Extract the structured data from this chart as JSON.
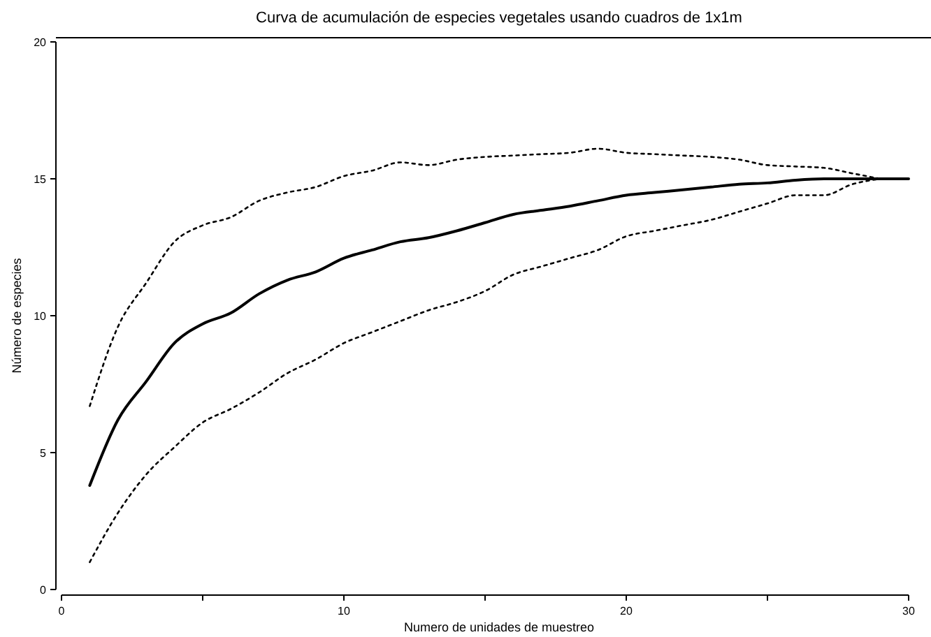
{
  "chart_data": {
    "type": "line",
    "title": "Curva de acumulación de especies vegetales usando cuadros de 1x1m",
    "xlabel": "Numero de unidades de muestreo",
    "ylabel": "Número de especies",
    "xlim": [
      0,
      30
    ],
    "xticks": [
      0,
      {
        "value": 5,
        "label": null
      },
      10,
      {
        "value": 15,
        "label": null
      },
      20,
      {
        "value": 25,
        "label": null
      },
      30
    ],
    "ylim": [
      0,
      20
    ],
    "yticks": [
      0,
      5,
      10,
      15,
      20
    ],
    "grid": false,
    "marker": "none",
    "series": [
      {
        "color": "#000000",
        "line_style": "solid",
        "x": [
          1,
          2,
          3,
          4,
          5,
          6,
          7,
          8,
          9,
          10,
          11,
          12,
          13,
          14,
          15,
          16,
          17,
          18,
          19,
          20,
          21,
          22,
          23,
          24,
          25,
          26,
          27,
          28,
          29,
          30
        ],
        "values": [
          3.8,
          6.2,
          7.6,
          9.0,
          9.7,
          10.1,
          10.8,
          11.3,
          11.6,
          12.1,
          12.4,
          12.7,
          12.85,
          13.1,
          13.4,
          13.7,
          13.85,
          14.0,
          14.2,
          14.4,
          14.5,
          14.6,
          14.7,
          14.8,
          14.85,
          14.95,
          15,
          15,
          15,
          15
        ]
      },
      {
        "color": "#000000",
        "line_style": "dotted",
        "x": [
          1,
          2,
          3,
          4,
          5,
          6,
          7,
          8,
          9,
          10,
          11,
          12,
          13,
          14,
          15,
          16,
          17,
          18,
          19,
          20,
          21,
          22,
          23,
          24,
          25,
          26,
          27,
          28,
          29
        ],
        "values": [
          6.7,
          9.6,
          11.2,
          12.7,
          13.3,
          13.6,
          14.2,
          14.5,
          14.7,
          15.1,
          15.3,
          15.6,
          15.5,
          15.7,
          15.8,
          15.85,
          15.9,
          15.95,
          16.1,
          15.95,
          15.9,
          15.85,
          15.8,
          15.7,
          15.5,
          15.45,
          15.4,
          15.2,
          15.0
        ]
      },
      {
        "color": "#000000",
        "line_style": "dotted",
        "x": [
          1,
          2,
          3,
          4,
          5,
          6,
          7,
          8,
          9,
          10,
          11,
          12,
          13,
          14,
          15,
          16,
          17,
          18,
          19,
          20,
          21,
          22,
          23,
          24,
          25,
          26,
          27,
          28,
          29
        ],
        "values": [
          1.0,
          2.8,
          4.2,
          5.2,
          6.1,
          6.6,
          7.2,
          7.9,
          8.4,
          9.0,
          9.4,
          9.8,
          10.2,
          10.5,
          10.9,
          11.5,
          11.8,
          12.1,
          12.4,
          12.9,
          13.1,
          13.3,
          13.5,
          13.8,
          14.1,
          14.4,
          14.4,
          14.8,
          15.0
        ]
      }
    ]
  }
}
